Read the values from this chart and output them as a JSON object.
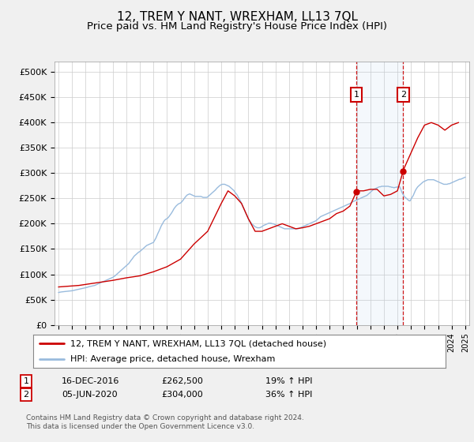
{
  "title": "12, TREM Y NANT, WREXHAM, LL13 7QL",
  "subtitle": "Price paid vs. HM Land Registry's House Price Index (HPI)",
  "title_fontsize": 11,
  "subtitle_fontsize": 9.5,
  "ylabel_ticks": [
    "£0",
    "£50K",
    "£100K",
    "£150K",
    "£200K",
    "£250K",
    "£300K",
    "£350K",
    "£400K",
    "£450K",
    "£500K"
  ],
  "ytick_values": [
    0,
    50000,
    100000,
    150000,
    200000,
    250000,
    300000,
    350000,
    400000,
    450000,
    500000
  ],
  "ylim": [
    0,
    520000
  ],
  "background_color": "#f0f0f0",
  "plot_bg_color": "#ffffff",
  "grid_color": "#cccccc",
  "red_line_color": "#cc0000",
  "blue_line_color": "#99bbdd",
  "marker1_date": "16-DEC-2016",
  "marker1_value": 262500,
  "marker1_pct": "19% ↑ HPI",
  "marker1_x": 2016.96,
  "marker2_date": "05-JUN-2020",
  "marker2_value": 304000,
  "marker2_pct": "36% ↑ HPI",
  "marker2_x": 2020.42,
  "legend_line1": "12, TREM Y NANT, WREXHAM, LL13 7QL (detached house)",
  "legend_line2": "HPI: Average price, detached house, Wrexham",
  "footer": "Contains HM Land Registry data © Crown copyright and database right 2024.\nThis data is licensed under the Open Government Licence v3.0.",
  "hpi_x": [
    1995.0,
    1995.08,
    1995.17,
    1995.25,
    1995.33,
    1995.42,
    1995.5,
    1995.58,
    1995.67,
    1995.75,
    1995.83,
    1995.92,
    1996.0,
    1996.08,
    1996.17,
    1996.25,
    1996.33,
    1996.42,
    1996.5,
    1996.58,
    1996.67,
    1996.75,
    1996.83,
    1996.92,
    1997.0,
    1997.08,
    1997.17,
    1997.25,
    1997.33,
    1997.42,
    1997.5,
    1997.58,
    1997.67,
    1997.75,
    1997.83,
    1997.92,
    1998.0,
    1998.08,
    1998.17,
    1998.25,
    1998.33,
    1998.42,
    1998.5,
    1998.58,
    1998.67,
    1998.75,
    1998.83,
    1998.92,
    1999.0,
    1999.08,
    1999.17,
    1999.25,
    1999.33,
    1999.42,
    1999.5,
    1999.58,
    1999.67,
    1999.75,
    1999.83,
    1999.92,
    2000.0,
    2000.08,
    2000.17,
    2000.25,
    2000.33,
    2000.42,
    2000.5,
    2000.58,
    2000.67,
    2000.75,
    2000.83,
    2000.92,
    2001.0,
    2001.08,
    2001.17,
    2001.25,
    2001.33,
    2001.42,
    2001.5,
    2001.58,
    2001.67,
    2001.75,
    2001.83,
    2001.92,
    2002.0,
    2002.08,
    2002.17,
    2002.25,
    2002.33,
    2002.42,
    2002.5,
    2002.58,
    2002.67,
    2002.75,
    2002.83,
    2002.92,
    2003.0,
    2003.08,
    2003.17,
    2003.25,
    2003.33,
    2003.42,
    2003.5,
    2003.58,
    2003.67,
    2003.75,
    2003.83,
    2003.92,
    2004.0,
    2004.08,
    2004.17,
    2004.25,
    2004.33,
    2004.42,
    2004.5,
    2004.58,
    2004.67,
    2004.75,
    2004.83,
    2004.92,
    2005.0,
    2005.08,
    2005.17,
    2005.25,
    2005.33,
    2005.42,
    2005.5,
    2005.58,
    2005.67,
    2005.75,
    2005.83,
    2005.92,
    2006.0,
    2006.08,
    2006.17,
    2006.25,
    2006.33,
    2006.42,
    2006.5,
    2006.58,
    2006.67,
    2006.75,
    2006.83,
    2006.92,
    2007.0,
    2007.08,
    2007.17,
    2007.25,
    2007.33,
    2007.42,
    2007.5,
    2007.58,
    2007.67,
    2007.75,
    2007.83,
    2007.92,
    2008.0,
    2008.08,
    2008.17,
    2008.25,
    2008.33,
    2008.42,
    2008.5,
    2008.58,
    2008.67,
    2008.75,
    2008.83,
    2008.92,
    2009.0,
    2009.08,
    2009.17,
    2009.25,
    2009.33,
    2009.42,
    2009.5,
    2009.58,
    2009.67,
    2009.75,
    2009.83,
    2009.92,
    2010.0,
    2010.08,
    2010.17,
    2010.25,
    2010.33,
    2010.42,
    2010.5,
    2010.58,
    2010.67,
    2010.75,
    2010.83,
    2010.92,
    2011.0,
    2011.08,
    2011.17,
    2011.25,
    2011.33,
    2011.42,
    2011.5,
    2011.58,
    2011.67,
    2011.75,
    2011.83,
    2011.92,
    2012.0,
    2012.08,
    2012.17,
    2012.25,
    2012.33,
    2012.42,
    2012.5,
    2012.58,
    2012.67,
    2012.75,
    2012.83,
    2012.92,
    2013.0,
    2013.08,
    2013.17,
    2013.25,
    2013.33,
    2013.42,
    2013.5,
    2013.58,
    2013.67,
    2013.75,
    2013.83,
    2013.92,
    2014.0,
    2014.08,
    2014.17,
    2014.25,
    2014.33,
    2014.42,
    2014.5,
    2014.58,
    2014.67,
    2014.75,
    2014.83,
    2014.92,
    2015.0,
    2015.08,
    2015.17,
    2015.25,
    2015.33,
    2015.42,
    2015.5,
    2015.58,
    2015.67,
    2015.75,
    2015.83,
    2015.92,
    2016.0,
    2016.08,
    2016.17,
    2016.25,
    2016.33,
    2016.42,
    2016.5,
    2016.58,
    2016.67,
    2016.75,
    2016.83,
    2016.92,
    2017.0,
    2017.08,
    2017.17,
    2017.25,
    2017.33,
    2017.42,
    2017.5,
    2017.58,
    2017.67,
    2017.75,
    2017.83,
    2017.92,
    2018.0,
    2018.08,
    2018.17,
    2018.25,
    2018.33,
    2018.42,
    2018.5,
    2018.58,
    2018.67,
    2018.75,
    2018.83,
    2018.92,
    2019.0,
    2019.08,
    2019.17,
    2019.25,
    2019.33,
    2019.42,
    2019.5,
    2019.58,
    2019.67,
    2019.75,
    2019.83,
    2019.92,
    2020.0,
    2020.08,
    2020.17,
    2020.25,
    2020.33,
    2020.42,
    2020.5,
    2020.58,
    2020.67,
    2020.75,
    2020.83,
    2020.92,
    2021.0,
    2021.08,
    2021.17,
    2021.25,
    2021.33,
    2021.42,
    2021.5,
    2021.58,
    2021.67,
    2021.75,
    2021.83,
    2021.92,
    2022.0,
    2022.08,
    2022.17,
    2022.25,
    2022.33,
    2022.42,
    2022.5,
    2022.58,
    2022.67,
    2022.75,
    2022.83,
    2022.92,
    2023.0,
    2023.08,
    2023.17,
    2023.25,
    2023.33,
    2023.42,
    2023.5,
    2023.58,
    2023.67,
    2023.75,
    2023.83,
    2023.92,
    2024.0,
    2024.08,
    2024.17,
    2024.25,
    2024.33,
    2024.42,
    2024.5,
    2024.58,
    2024.67,
    2024.75,
    2024.83,
    2024.92,
    2025.0
  ],
  "hpi_y": [
    64000,
    64500,
    65000,
    65200,
    65500,
    65800,
    66000,
    66200,
    66500,
    66800,
    67000,
    67200,
    67500,
    68000,
    68500,
    69000,
    69500,
    70000,
    70500,
    71000,
    71500,
    72000,
    72500,
    73000,
    73500,
    74000,
    74800,
    75500,
    76000,
    76500,
    77000,
    77500,
    78000,
    79000,
    80000,
    81000,
    82000,
    83000,
    84000,
    85000,
    86000,
    87000,
    88000,
    89000,
    90000,
    91000,
    92000,
    93000,
    94000,
    95500,
    97000,
    99000,
    101000,
    103000,
    105000,
    107000,
    109000,
    111000,
    113000,
    115000,
    117000,
    119000,
    121000,
    124000,
    127000,
    130000,
    133000,
    136000,
    138000,
    140000,
    142000,
    144000,
    145000,
    147000,
    149000,
    151000,
    153000,
    155000,
    157000,
    158000,
    159000,
    160000,
    161000,
    162000,
    163000,
    167000,
    171000,
    176000,
    181000,
    186000,
    191000,
    196000,
    200000,
    204000,
    207000,
    209000,
    210000,
    212000,
    215000,
    218000,
    221000,
    225000,
    229000,
    232000,
    235000,
    237000,
    239000,
    240000,
    241000,
    243000,
    246000,
    249000,
    252000,
    255000,
    257000,
    258000,
    259000,
    258000,
    257000,
    256000,
    255000,
    254000,
    254000,
    254000,
    254000,
    254000,
    254000,
    253000,
    252000,
    252000,
    252000,
    252000,
    253000,
    255000,
    257000,
    259000,
    261000,
    263000,
    265000,
    267000,
    270000,
    272000,
    274000,
    276000,
    277000,
    278000,
    278000,
    278000,
    277000,
    276000,
    275000,
    274000,
    272000,
    270000,
    268000,
    266000,
    263000,
    260000,
    257000,
    253000,
    249000,
    245000,
    240000,
    235000,
    230000,
    225000,
    220000,
    215000,
    210000,
    206000,
    203000,
    200000,
    198000,
    196000,
    194000,
    193000,
    192000,
    192000,
    192000,
    193000,
    194000,
    196000,
    197000,
    198000,
    199000,
    200000,
    201000,
    201000,
    201000,
    200000,
    200000,
    199000,
    198000,
    197000,
    196000,
    195000,
    194000,
    193000,
    192000,
    191000,
    190000,
    190000,
    190000,
    190000,
    190000,
    190000,
    190000,
    190000,
    190000,
    190000,
    190000,
    190000,
    190000,
    191000,
    192000,
    193000,
    194000,
    195000,
    196000,
    197000,
    198000,
    199000,
    200000,
    201000,
    202000,
    203000,
    204000,
    205000,
    206000,
    208000,
    210000,
    212000,
    214000,
    215000,
    216000,
    217000,
    218000,
    219000,
    220000,
    221000,
    222000,
    223000,
    224000,
    225000,
    226000,
    227000,
    228000,
    229000,
    230000,
    231000,
    232000,
    233000,
    234000,
    235000,
    236000,
    237000,
    238000,
    239000,
    240000,
    241000,
    243000,
    244000,
    245000,
    246000,
    247000,
    248000,
    249000,
    250000,
    251000,
    252000,
    253000,
    254000,
    255000,
    256000,
    258000,
    260000,
    262000,
    264000,
    266000,
    268000,
    269000,
    270000,
    271000,
    272000,
    273000,
    273000,
    274000,
    274000,
    274000,
    274000,
    274000,
    274000,
    274000,
    273000,
    273000,
    272000,
    272000,
    271000,
    272000,
    272000,
    273000,
    273000,
    273000,
    268000,
    262000,
    258000,
    254000,
    252000,
    250000,
    248000,
    246000,
    245000,
    248000,
    252000,
    256000,
    261000,
    266000,
    270000,
    273000,
    275000,
    277000,
    279000,
    281000,
    283000,
    284000,
    285000,
    286000,
    287000,
    287000,
    287000,
    287000,
    287000,
    287000,
    286000,
    285000,
    284000,
    283000,
    282000,
    281000,
    280000,
    279000,
    278000,
    278000,
    278000,
    278000,
    279000,
    279000,
    280000,
    281000,
    282000,
    283000,
    284000,
    285000,
    286000,
    287000,
    288000,
    288000,
    289000,
    290000,
    291000,
    292000
  ],
  "house_x": [
    1995.0,
    1995.5,
    1996.5,
    1997.5,
    1999.0,
    2000.0,
    2001.0,
    2002.0,
    2003.0,
    2004.0,
    2004.5,
    2005.0,
    2006.0,
    2007.0,
    2007.5,
    2008.0,
    2008.5,
    2009.0,
    2009.5,
    2010.0,
    2010.5,
    2011.0,
    2011.5,
    2012.0,
    2012.5,
    2013.0,
    2013.5,
    2014.0,
    2014.5,
    2015.0,
    2015.5,
    2016.0,
    2016.5,
    2016.96,
    2017.0,
    2017.5,
    2018.0,
    2018.5,
    2019.0,
    2019.5,
    2020.0,
    2020.42,
    2020.5,
    2021.0,
    2021.5,
    2022.0,
    2022.5,
    2023.0,
    2023.5,
    2024.0,
    2024.5
  ],
  "house_y": [
    75000,
    76000,
    78000,
    82000,
    88000,
    93000,
    97000,
    105000,
    115000,
    130000,
    145000,
    160000,
    185000,
    240000,
    265000,
    255000,
    240000,
    210000,
    185000,
    185000,
    190000,
    195000,
    200000,
    195000,
    190000,
    192000,
    195000,
    200000,
    205000,
    210000,
    220000,
    225000,
    235000,
    262500,
    265000,
    265000,
    268000,
    268000,
    255000,
    258000,
    265000,
    304000,
    310000,
    340000,
    370000,
    395000,
    400000,
    395000,
    385000,
    395000,
    400000
  ]
}
